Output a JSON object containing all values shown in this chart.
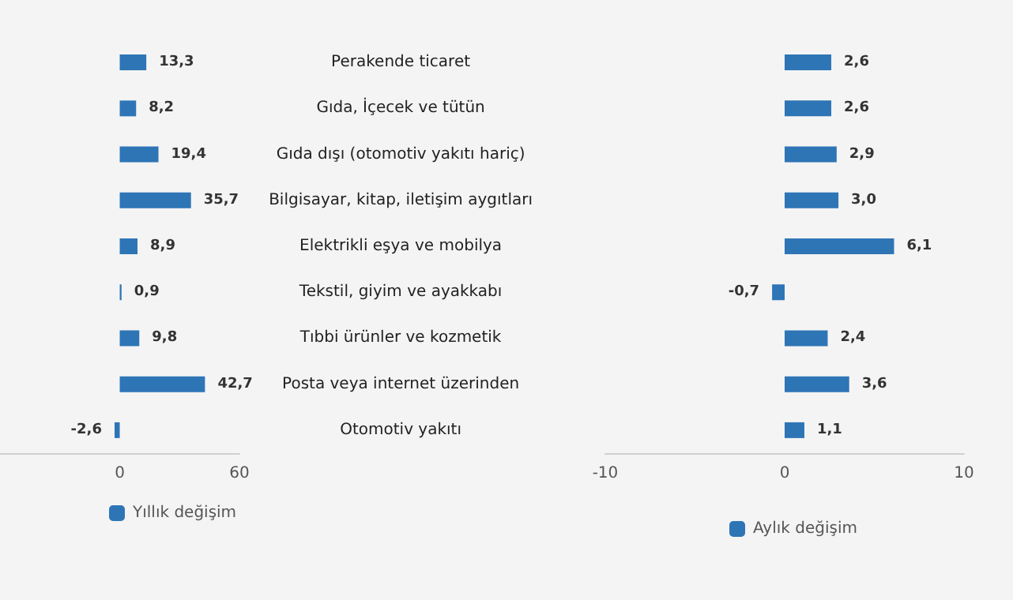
{
  "chart_data": [
    {
      "type": "bar",
      "orientation": "horizontal",
      "categories": [
        "Perakende ticaret",
        "Gıda, İçecek ve tütün",
        "Gıda dışı (otomotiv yakıtı hariç)",
        "Bilgisayar, kitap, iletişim aygıtları",
        "Elektrikli eşya ve mobilya",
        "Tekstil, giyim ve ayakkabı",
        "Tıbbi ürünler ve kozmetik",
        "Posta veya internet üzerinden",
        "Otomotiv yakıtı"
      ],
      "series": [
        {
          "name": "Yıllık değişim",
          "color": "#2e75b6",
          "values": [
            13.3,
            8.2,
            19.4,
            35.7,
            8.9,
            0.9,
            9.8,
            42.7,
            -2.6
          ],
          "value_labels": [
            "13,3",
            "8,2",
            "19,4",
            "35,7",
            "8,9",
            "0,9",
            "9,8",
            "42,7",
            "-2,6"
          ]
        }
      ],
      "xlim": [
        -60,
        60
      ],
      "xticks": [
        0,
        60
      ],
      "grid": false,
      "legend": "bottom"
    },
    {
      "type": "bar",
      "orientation": "horizontal",
      "categories": [
        null,
        null,
        null,
        null,
        null,
        null,
        null,
        null,
        null
      ],
      "series": [
        {
          "name": "Aylık değişim",
          "color": "#2e75b6",
          "values": [
            2.6,
            2.6,
            2.9,
            3.0,
            6.1,
            -0.7,
            2.4,
            3.6,
            1.1
          ],
          "value_labels": [
            "2,6",
            "2,6",
            "2,9",
            "3,0",
            "6,1",
            "-0,7",
            "2,4",
            "3,6",
            "1,1"
          ]
        }
      ],
      "xlim": [
        -10,
        10
      ],
      "xticks": [
        -10,
        0,
        10
      ],
      "grid": false,
      "legend": "bottom",
      "tick_labels": "x"
    }
  ]
}
